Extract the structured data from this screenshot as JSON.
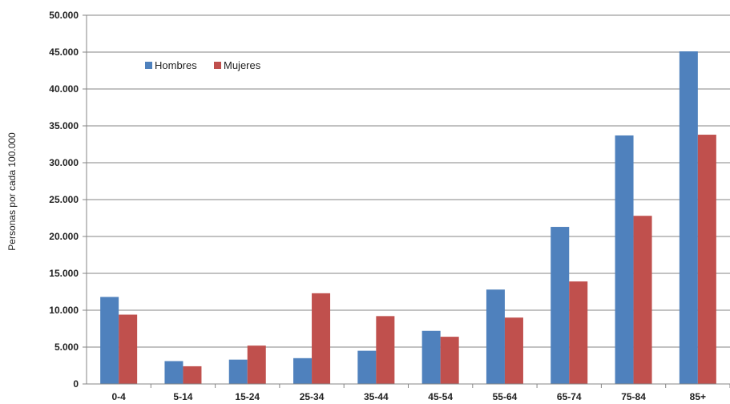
{
  "chart_data": {
    "type": "bar",
    "title": "",
    "xlabel": "",
    "ylabel": "Personas por cada 100.000",
    "ylim": [
      0,
      50000
    ],
    "ytick_step": 5000,
    "ytick_labels": [
      "0",
      "5.000",
      "10.000",
      "15.000",
      "20.000",
      "25.000",
      "30.000",
      "35.000",
      "40.000",
      "45.000",
      "50.000"
    ],
    "grid": true,
    "legend_position": "top-left",
    "categories": [
      "0-4",
      "5-14",
      "15-24",
      "25-34",
      "35-44",
      "45-54",
      "55-64",
      "65-74",
      "75-84",
      "85+"
    ],
    "series": [
      {
        "name": "Hombres",
        "color": "#4f81bd",
        "values": [
          11800,
          3100,
          3300,
          3500,
          4500,
          7200,
          12800,
          21300,
          33700,
          45100
        ]
      },
      {
        "name": "Mujeres",
        "color": "#c0504d",
        "values": [
          9400,
          2400,
          5200,
          12300,
          9200,
          6400,
          9000,
          13900,
          22800,
          33800
        ]
      }
    ]
  }
}
